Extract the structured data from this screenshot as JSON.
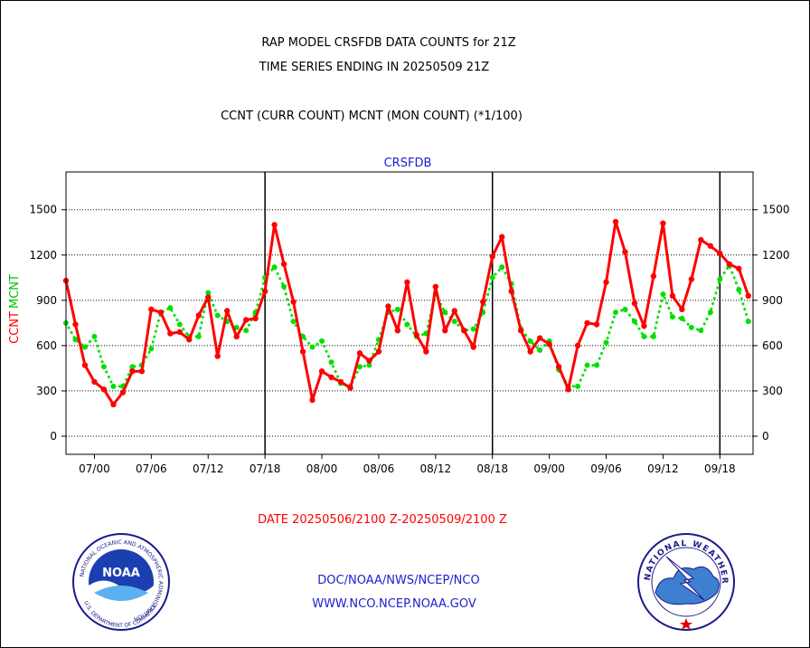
{
  "chart_data": {
    "type": "line",
    "title_lines": [
      "RAP MODEL CRSFDB DATA COUNTS for 21Z",
      "TIME SERIES ENDING IN 20250509 21Z"
    ],
    "subtitle": "CCNT (CURR COUNT) MCNT (MON COUNT) (*1/100)",
    "panel_label": "CRSFDB",
    "ylabel_ccnt": "CCNT",
    "ylabel_mcnt": "MCNT",
    "xlabel": "DATE 20250506/2100 Z-20250509/2100 Z",
    "ylim": [
      -120,
      1750
    ],
    "yticks": [
      0,
      300,
      600,
      900,
      1200,
      1500
    ],
    "xlim": [
      0,
      72.5
    ],
    "xticks": [
      {
        "x": 3,
        "label": "07/00"
      },
      {
        "x": 9,
        "label": "07/06"
      },
      {
        "x": 15,
        "label": "07/12"
      },
      {
        "x": 21,
        "label": "07/18"
      },
      {
        "x": 27,
        "label": "08/00"
      },
      {
        "x": 33,
        "label": "08/06"
      },
      {
        "x": 39,
        "label": "08/12"
      },
      {
        "x": 45,
        "label": "08/18"
      },
      {
        "x": 51,
        "label": "09/00"
      },
      {
        "x": 57,
        "label": "09/06"
      },
      {
        "x": 63,
        "label": "09/12"
      },
      {
        "x": 69,
        "label": "09/18"
      }
    ],
    "day_dividers": [
      21,
      45,
      69
    ],
    "grid": true,
    "series": [
      {
        "name": "CCNT",
        "color": "#ff0000",
        "style": "solid",
        "x": [
          0,
          1,
          2,
          3,
          4,
          5,
          6,
          7,
          8,
          9,
          10,
          11,
          12,
          13,
          14,
          15,
          16,
          17,
          18,
          19,
          20,
          21,
          22,
          23,
          24,
          25,
          26,
          27,
          28,
          29,
          30,
          31,
          32,
          33,
          34,
          35,
          36,
          37,
          38,
          39,
          40,
          41,
          42,
          43,
          44,
          45,
          46,
          47,
          48,
          49,
          50,
          51,
          52,
          53,
          54,
          55,
          56,
          57,
          58,
          59,
          60,
          61,
          62,
          63,
          64,
          65,
          66,
          67,
          68,
          69,
          70,
          71,
          72
        ],
        "values": [
          1030,
          740,
          470,
          360,
          310,
          210,
          290,
          430,
          430,
          840,
          820,
          680,
          690,
          640,
          800,
          920,
          530,
          830,
          660,
          770,
          780,
          960,
          1400,
          1140,
          890,
          560,
          240,
          430,
          390,
          360,
          320,
          550,
          500,
          560,
          860,
          700,
          1020,
          670,
          560,
          990,
          700,
          830,
          700,
          590,
          890,
          1190,
          1320,
          960,
          700,
          560,
          650,
          610,
          460,
          310,
          600,
          750,
          740,
          1020,
          1420,
          1220,
          880,
          730,
          1060,
          1410,
          930,
          840,
          1040,
          1300,
          1260,
          1210,
          1140,
          1110,
          930
        ]
      },
      {
        "name": "MCNT",
        "color": "#00e000",
        "style": "dotted",
        "x": [
          0,
          1,
          2,
          3,
          4,
          5,
          6,
          7,
          8,
          9,
          10,
          11,
          12,
          13,
          14,
          15,
          16,
          17,
          18,
          19,
          20,
          21,
          22,
          23,
          24,
          25,
          26,
          27,
          28,
          29,
          30,
          31,
          32,
          33,
          34,
          35,
          36,
          37,
          38,
          39,
          40,
          41,
          42,
          43,
          44,
          45,
          46,
          47,
          48,
          49,
          50,
          51,
          52,
          53,
          54,
          55,
          56,
          57,
          58,
          59,
          60,
          61,
          62,
          63,
          64,
          65,
          66,
          67,
          68,
          69,
          70,
          71,
          72
        ],
        "values": [
          750,
          640,
          590,
          660,
          460,
          330,
          330,
          460,
          470,
          580,
          820,
          850,
          740,
          660,
          660,
          950,
          800,
          760,
          720,
          700,
          820,
          1050,
          1120,
          990,
          760,
          660,
          590,
          630,
          490,
          350,
          330,
          460,
          470,
          640,
          820,
          840,
          740,
          660,
          680,
          940,
          820,
          760,
          700,
          710,
          820,
          1050,
          1120,
          1010,
          710,
          630,
          570,
          630,
          440,
          330,
          330,
          470,
          470,
          620,
          820,
          840,
          760,
          660,
          660,
          940,
          790,
          780,
          720,
          700,
          820,
          1040,
          1130,
          970,
          760
        ]
      }
    ]
  },
  "footer": {
    "agency_line": "DOC/NOAA/NWS/NCEP/NCO",
    "website": "WWW.NCO.NCEP.NOAA.GOV"
  },
  "logos": {
    "noaa_center": "NOAA",
    "noaa_ring": "NATIONAL OCEANIC AND ATMOSPHERIC ADMINISTRATION",
    "noaa_ring_bottom": "U.S. DEPARTMENT OF COMMERCE",
    "nws_ring": "NATIONAL WEATHER SERVICE"
  },
  "colors": {
    "ccnt": "#ff0000",
    "mcnt": "#00e000",
    "link_blue": "#2020d0",
    "text": "#000000"
  }
}
